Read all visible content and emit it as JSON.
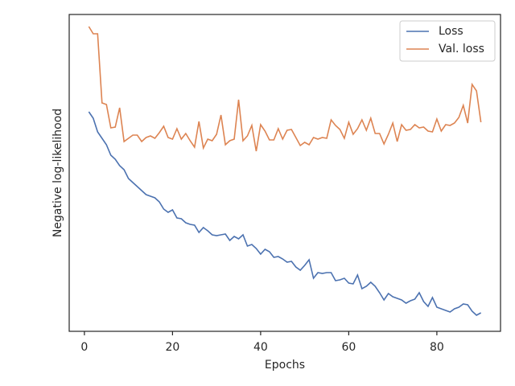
{
  "chart_data": {
    "type": "line",
    "xlabel": "Epochs",
    "ylabel": "Negative log-likelihood",
    "x": [
      1,
      2,
      3,
      4,
      5,
      6,
      7,
      8,
      9,
      10,
      11,
      12,
      13,
      14,
      15,
      16,
      17,
      18,
      19,
      20,
      21,
      22,
      23,
      24,
      25,
      26,
      27,
      28,
      29,
      30,
      31,
      32,
      33,
      34,
      35,
      36,
      37,
      38,
      39,
      40,
      41,
      42,
      43,
      44,
      45,
      46,
      47,
      48,
      49,
      50,
      51,
      52,
      53,
      54,
      55,
      56,
      57,
      58,
      59,
      60,
      61,
      62,
      63,
      64,
      65,
      66,
      67,
      68,
      69,
      70,
      71,
      72,
      73,
      74,
      75,
      76,
      77,
      78,
      79,
      80,
      81,
      82,
      83,
      84,
      85,
      86,
      87,
      88,
      89,
      90
    ],
    "series": [
      {
        "name": "Loss",
        "color": "#4c72b0",
        "values": [
          273,
          265,
          248,
          240,
          232,
          219,
          214,
          206,
          201,
          190,
          185,
          180,
          175,
          170,
          168,
          166,
          161,
          152,
          148,
          151,
          141,
          140,
          135,
          133,
          132,
          123,
          129,
          125,
          120,
          119,
          120,
          121,
          113,
          118,
          115,
          120,
          106,
          108,
          103,
          96,
          102,
          99,
          92,
          93,
          90,
          86,
          87,
          80,
          76,
          82,
          89,
          66,
          73,
          72,
          73,
          73,
          63,
          64,
          66,
          60,
          59,
          70,
          53,
          56,
          61,
          56,
          48,
          39,
          47,
          43,
          41,
          39,
          35,
          38,
          40,
          48,
          37,
          31,
          42,
          30,
          28,
          26,
          24,
          28,
          30,
          34,
          33,
          25,
          20,
          23
        ]
      },
      {
        "name": "Val. loss",
        "color": "#dd8452",
        "values": [
          379,
          370,
          370,
          284,
          282,
          253,
          254,
          278,
          236,
          240,
          244,
          244,
          236,
          241,
          243,
          240,
          247,
          255,
          241,
          239,
          252,
          239,
          246,
          237,
          229,
          261,
          228,
          239,
          237,
          245,
          269,
          232,
          237,
          239,
          288,
          237,
          243,
          256,
          224,
          257,
          249,
          238,
          238,
          252,
          239,
          250,
          251,
          241,
          231,
          235,
          232,
          241,
          239,
          241,
          240,
          263,
          256,
          251,
          240,
          260,
          245,
          252,
          263,
          250,
          265,
          246,
          246,
          233,
          245,
          259,
          236,
          257,
          250,
          251,
          257,
          253,
          254,
          249,
          248,
          264,
          249,
          257,
          256,
          259,
          266,
          281,
          259,
          307,
          299,
          260
        ]
      }
    ],
    "xlim": [
      -3.45,
      94.45
    ],
    "xticks": [
      0,
      20,
      40,
      60,
      80
    ],
    "ylim": [
      0,
      394
    ],
    "legend": "upper right"
  }
}
